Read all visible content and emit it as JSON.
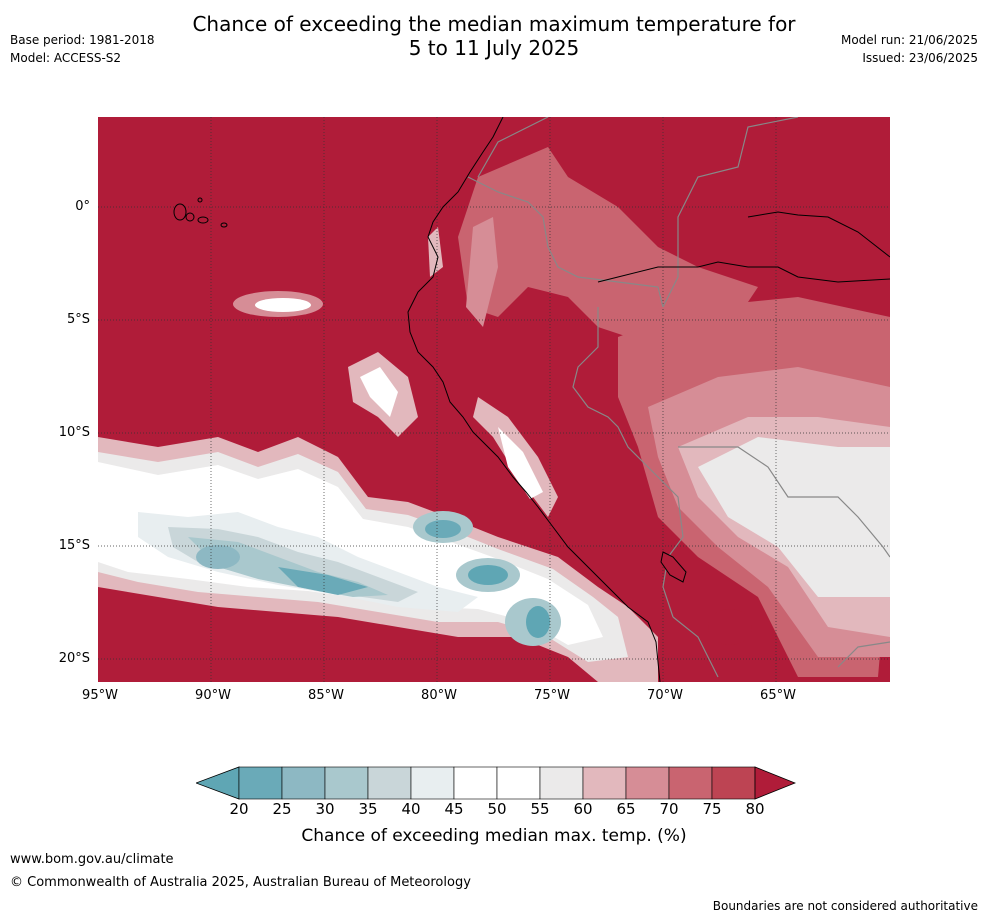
{
  "title": {
    "line1": "Chance of exceeding the median maximum temperature for",
    "line2": "5 to 11 July 2025"
  },
  "meta_left": {
    "base_period": "Base period: 1981-2018",
    "model": "Model: ACCESS-S2"
  },
  "meta_right": {
    "model_run": "Model run: 21/06/2025",
    "issued": "Issued: 23/06/2025"
  },
  "map": {
    "lat_labels": [
      "0°",
      "5°S",
      "10°S",
      "15°S",
      "20°S"
    ],
    "lon_labels": [
      "95°W",
      "90°W",
      "85°W",
      "80°W",
      "75°W",
      "70°W",
      "65°W"
    ]
  },
  "colorbar": {
    "title": "Chance of exceeding median max. temp. (%)",
    "ticks": [
      "20",
      "25",
      "30",
      "35",
      "40",
      "45",
      "50",
      "55",
      "60",
      "65",
      "70",
      "75",
      "80"
    ],
    "colors": [
      "#5fa6b4",
      "#6aaab8",
      "#8db8c3",
      "#a9c8cd",
      "#c9d6d9",
      "#e8eef0",
      "#ffffff",
      "#ffffff",
      "#ebeaea",
      "#e2b8bd",
      "#d68d96",
      "#c96470",
      "#bd4453",
      "#b01c39"
    ]
  },
  "footer": {
    "website": "www.bom.gov.au/climate",
    "copyright": "© Commonwealth of Australia 2025, Australian Bureau of Meteorology",
    "disclaimer": "Boundaries are not considered authoritative"
  }
}
